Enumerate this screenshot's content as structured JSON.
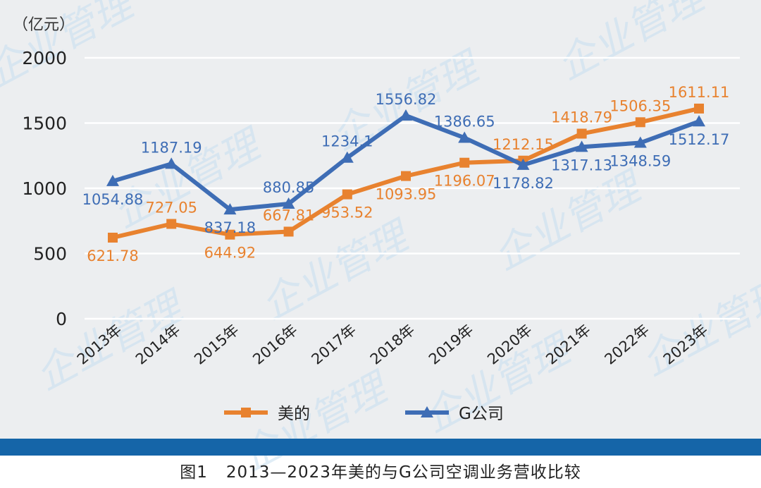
{
  "watermark_text": "企业管理",
  "caption": {
    "figure_no": "图1",
    "text": "2013—2023年美的与G公司空调业务营收比较"
  },
  "colors": {
    "midea": "#e8822f",
    "gcompany": "#3e6db5",
    "band": "#1565a8",
    "background": "#eceef0",
    "grid": "#ffffff"
  },
  "chart_data": {
    "type": "line",
    "unit_label": "（亿元）",
    "ylim": [
      0,
      2000
    ],
    "yticks": [
      "0",
      "500",
      "1000",
      "1500",
      "2000"
    ],
    "categories": [
      "2013年",
      "2014年",
      "2015年",
      "2016年",
      "2017年",
      "2018年",
      "2019年",
      "2020年",
      "2021年",
      "2022年",
      "2023年"
    ],
    "grid": true,
    "legend_position": "bottom",
    "series": [
      {
        "name": "美的",
        "marker": "square",
        "values": [
          621.78,
          727.05,
          644.92,
          667.81,
          953.52,
          1093.95,
          1196.07,
          1212.15,
          1418.79,
          1506.35,
          1611.11
        ],
        "labels": [
          "621.78",
          "727.05",
          "644.92",
          "667.81",
          "953.52",
          "1093.95",
          "1196.07",
          "1212.15",
          "1418.79",
          "1506.35",
          "1611.11"
        ]
      },
      {
        "name": "G公司",
        "marker": "triangle",
        "values": [
          1054.88,
          1187.19,
          837.18,
          880.85,
          1234.1,
          1556.82,
          1386.65,
          1178.82,
          1317.13,
          1348.59,
          1512.17
        ],
        "labels": [
          "1054.88",
          "1187.19",
          "837.18",
          "880.85",
          "1234.1",
          "1556.82",
          "1386.65",
          "1178.82",
          "1317.13",
          "1348.59",
          "1512.17"
        ]
      }
    ]
  }
}
